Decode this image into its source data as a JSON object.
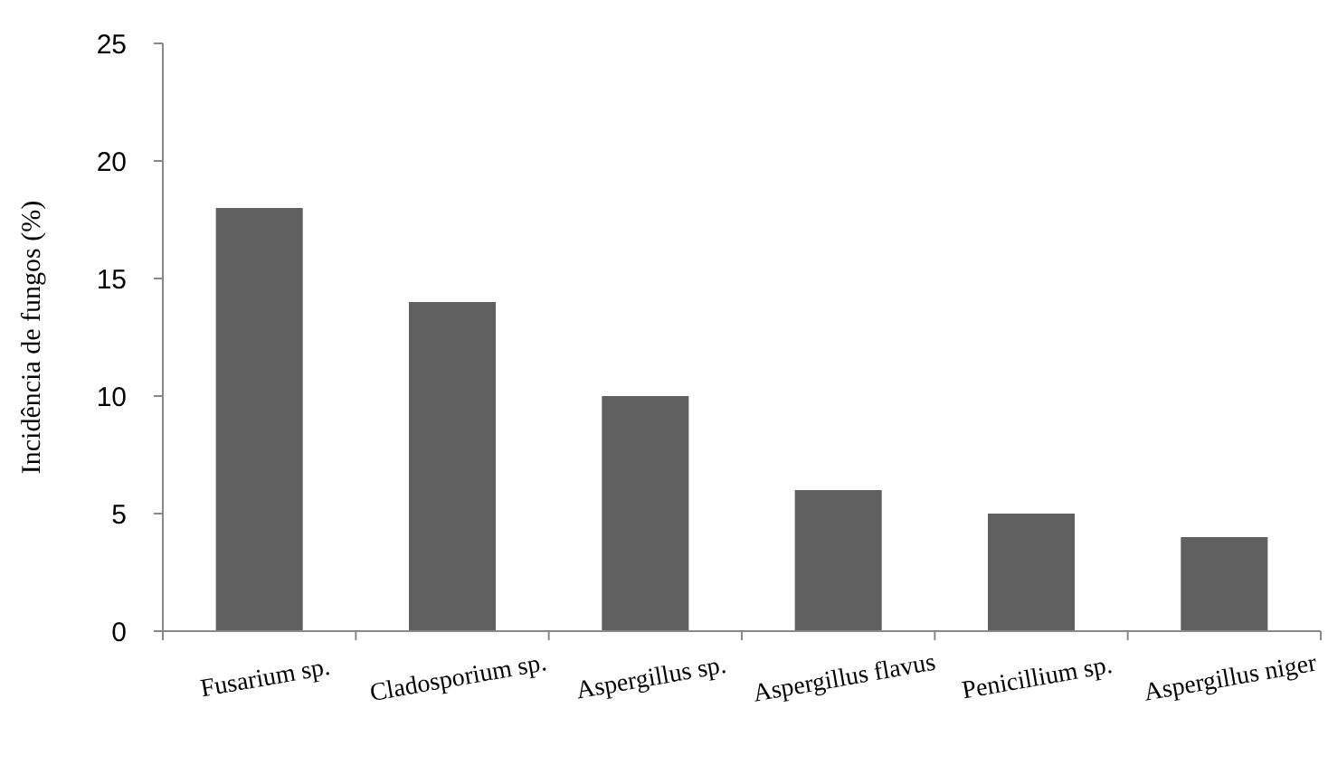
{
  "chart_data": {
    "type": "bar",
    "ylabel": "Incidência de fungos  (%)",
    "categories": [
      "Fusarium sp.",
      "Cladosporium sp.",
      "Aspergillus sp.",
      "Aspergillus flavus",
      "Penicillium sp.",
      "Aspergillus niger"
    ],
    "values": [
      18,
      14,
      10,
      6,
      5,
      4
    ],
    "color": "#606060",
    "ylim": [
      0,
      25
    ],
    "yticks": [
      0,
      5,
      10,
      15,
      20,
      25
    ]
  }
}
